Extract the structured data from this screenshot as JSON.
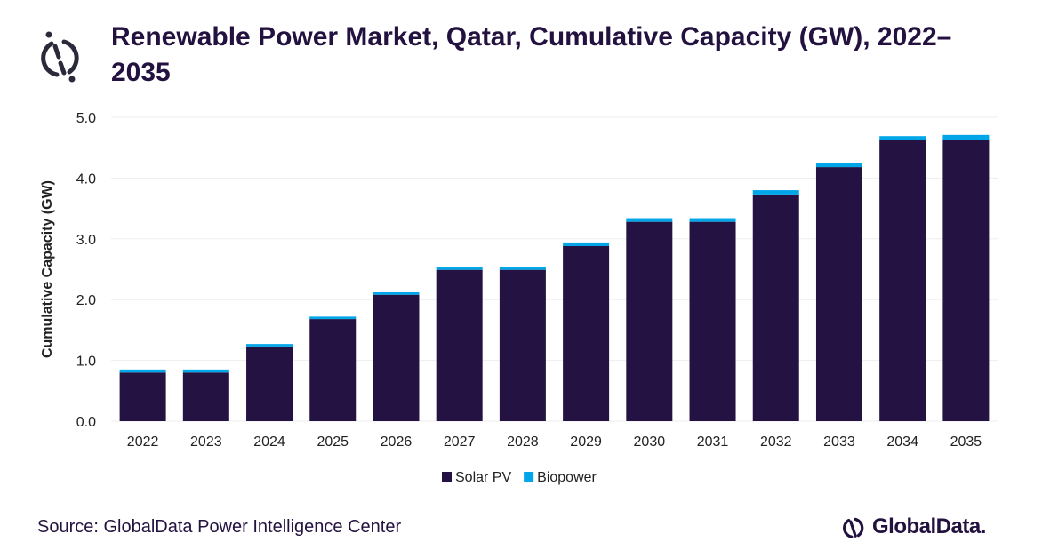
{
  "title": "Renewable Power Market, Qatar, Cumulative Capacity (GW), 2022–2035",
  "source": "Source: GlobalData Power Intelligence Center",
  "brand": "GlobalData.",
  "colors": {
    "solar": "#231242",
    "bio": "#00a6e8",
    "grid": "#eeeeee"
  },
  "chart_data": {
    "type": "bar",
    "stacked": true,
    "title": "Renewable Power Market, Qatar, Cumulative Capacity (GW), 2022–2035",
    "xlabel": "",
    "ylabel": "Cumulative Capacity (GW)",
    "ylim": [
      0,
      5
    ],
    "yticks": [
      "0.0",
      "1.0",
      "2.0",
      "3.0",
      "4.0",
      "5.0"
    ],
    "grid": true,
    "legend": "bottom",
    "categories": [
      "2022",
      "2023",
      "2024",
      "2025",
      "2026",
      "2027",
      "2028",
      "2029",
      "2030",
      "2031",
      "2032",
      "2033",
      "2034",
      "2035"
    ],
    "series": [
      {
        "name": "Solar PV",
        "values": [
          0.8,
          0.8,
          1.23,
          1.68,
          2.08,
          2.49,
          2.49,
          2.88,
          3.28,
          3.28,
          3.73,
          4.18,
          4.63,
          4.63
        ]
      },
      {
        "name": "Biopower",
        "values": [
          0.05,
          0.05,
          0.04,
          0.04,
          0.04,
          0.04,
          0.04,
          0.06,
          0.06,
          0.06,
          0.07,
          0.07,
          0.06,
          0.08
        ]
      }
    ]
  }
}
